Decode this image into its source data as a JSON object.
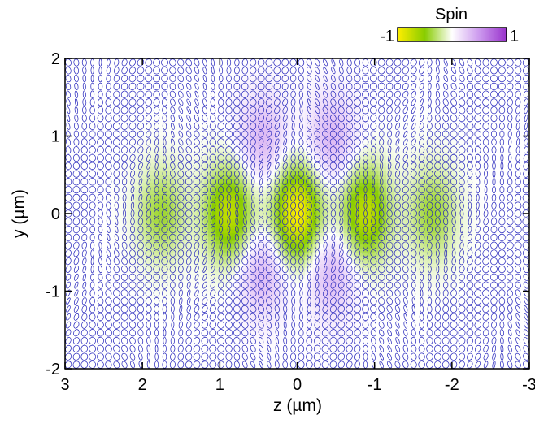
{
  "chart_data": {
    "type": "heatmap",
    "title": "",
    "xlabel": "z (µm)",
    "ylabel": "y (µm)",
    "xlim": [
      3,
      -3
    ],
    "ylim": [
      -2,
      2
    ],
    "x_ticks": [
      "3",
      "2",
      "1",
      "0",
      "-1",
      "-2",
      "-3"
    ],
    "y_ticks": [
      "2",
      "1",
      "0",
      "-1",
      "-2"
    ],
    "grid": false,
    "colorbar": {
      "label": "Spin",
      "min_label": "-1",
      "max_label": "1",
      "range": [
        -1,
        1
      ],
      "colors": [
        "#ffee00",
        "#88cc00",
        "#ffffff",
        "#cc99ee",
        "#9933cc"
      ],
      "placement": "top-right"
    },
    "field": {
      "description_of_value": "spin density",
      "lobes": [
        {
          "z": 0.0,
          "y": 0.0,
          "spin": -1.0
        },
        {
          "z": 0.88,
          "y": 0.0,
          "spin": -0.75
        },
        {
          "z": -0.88,
          "y": 0.0,
          "spin": -0.75
        },
        {
          "z": 1.75,
          "y": 0.0,
          "spin": -0.4
        },
        {
          "z": -1.75,
          "y": 0.0,
          "spin": -0.4
        },
        {
          "z": 0.45,
          "y": 0.95,
          "spin": 0.35
        },
        {
          "z": -0.45,
          "y": 0.95,
          "spin": 0.35
        },
        {
          "z": 0.45,
          "y": -0.75,
          "spin": 0.35
        },
        {
          "z": -0.45,
          "y": -0.75,
          "spin": 0.35
        }
      ]
    },
    "overlay": {
      "type": "polarization-ellipses",
      "color": "#2222bb"
    }
  }
}
